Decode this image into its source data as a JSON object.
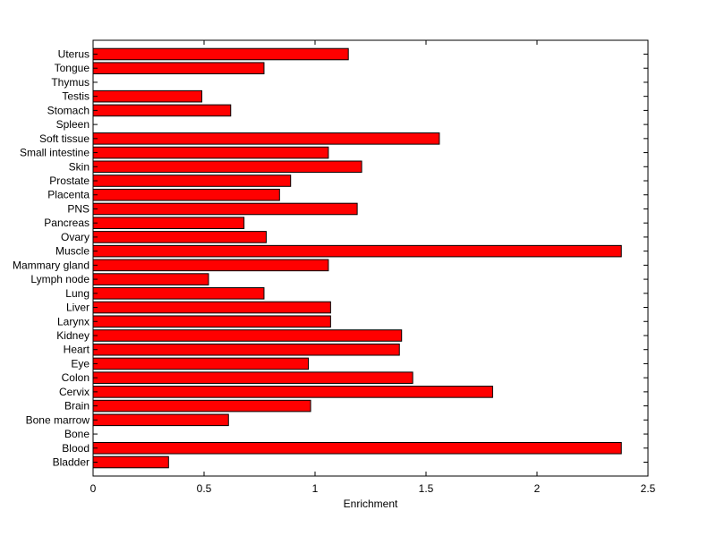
{
  "chart_data": {
    "type": "bar",
    "orientation": "horizontal",
    "xlabel": "Enrichment",
    "ylabel": "",
    "xlim": [
      0,
      2.5
    ],
    "xticks": [
      "0",
      "0.5",
      "1",
      "1.5",
      "2",
      "2.5"
    ],
    "grid": false,
    "legend": "none",
    "bar_color": "#ff0000",
    "edge_color": "#000000",
    "categories": [
      "Bladder",
      "Blood",
      "Bone",
      "Bone marrow",
      "Brain",
      "Cervix",
      "Colon",
      "Eye",
      "Heart",
      "Kidney",
      "Larynx",
      "Liver",
      "Lung",
      "Lymph node",
      "Mammary gland",
      "Muscle",
      "Ovary",
      "Pancreas",
      "PNS",
      "Placenta",
      "Prostate",
      "Skin",
      "Small intestine",
      "Soft tissue",
      "Spleen",
      "Stomach",
      "Testis",
      "Thymus",
      "Tongue",
      "Uterus"
    ],
    "values": [
      0.34,
      2.38,
      0,
      0.61,
      0.98,
      1.8,
      1.44,
      0.97,
      1.38,
      1.39,
      1.07,
      1.07,
      0.77,
      0.52,
      1.06,
      2.38,
      0.78,
      0.68,
      1.19,
      0.84,
      0.89,
      1.21,
      1.06,
      1.56,
      0,
      0.62,
      0.49,
      0,
      0.77,
      1.15
    ]
  }
}
